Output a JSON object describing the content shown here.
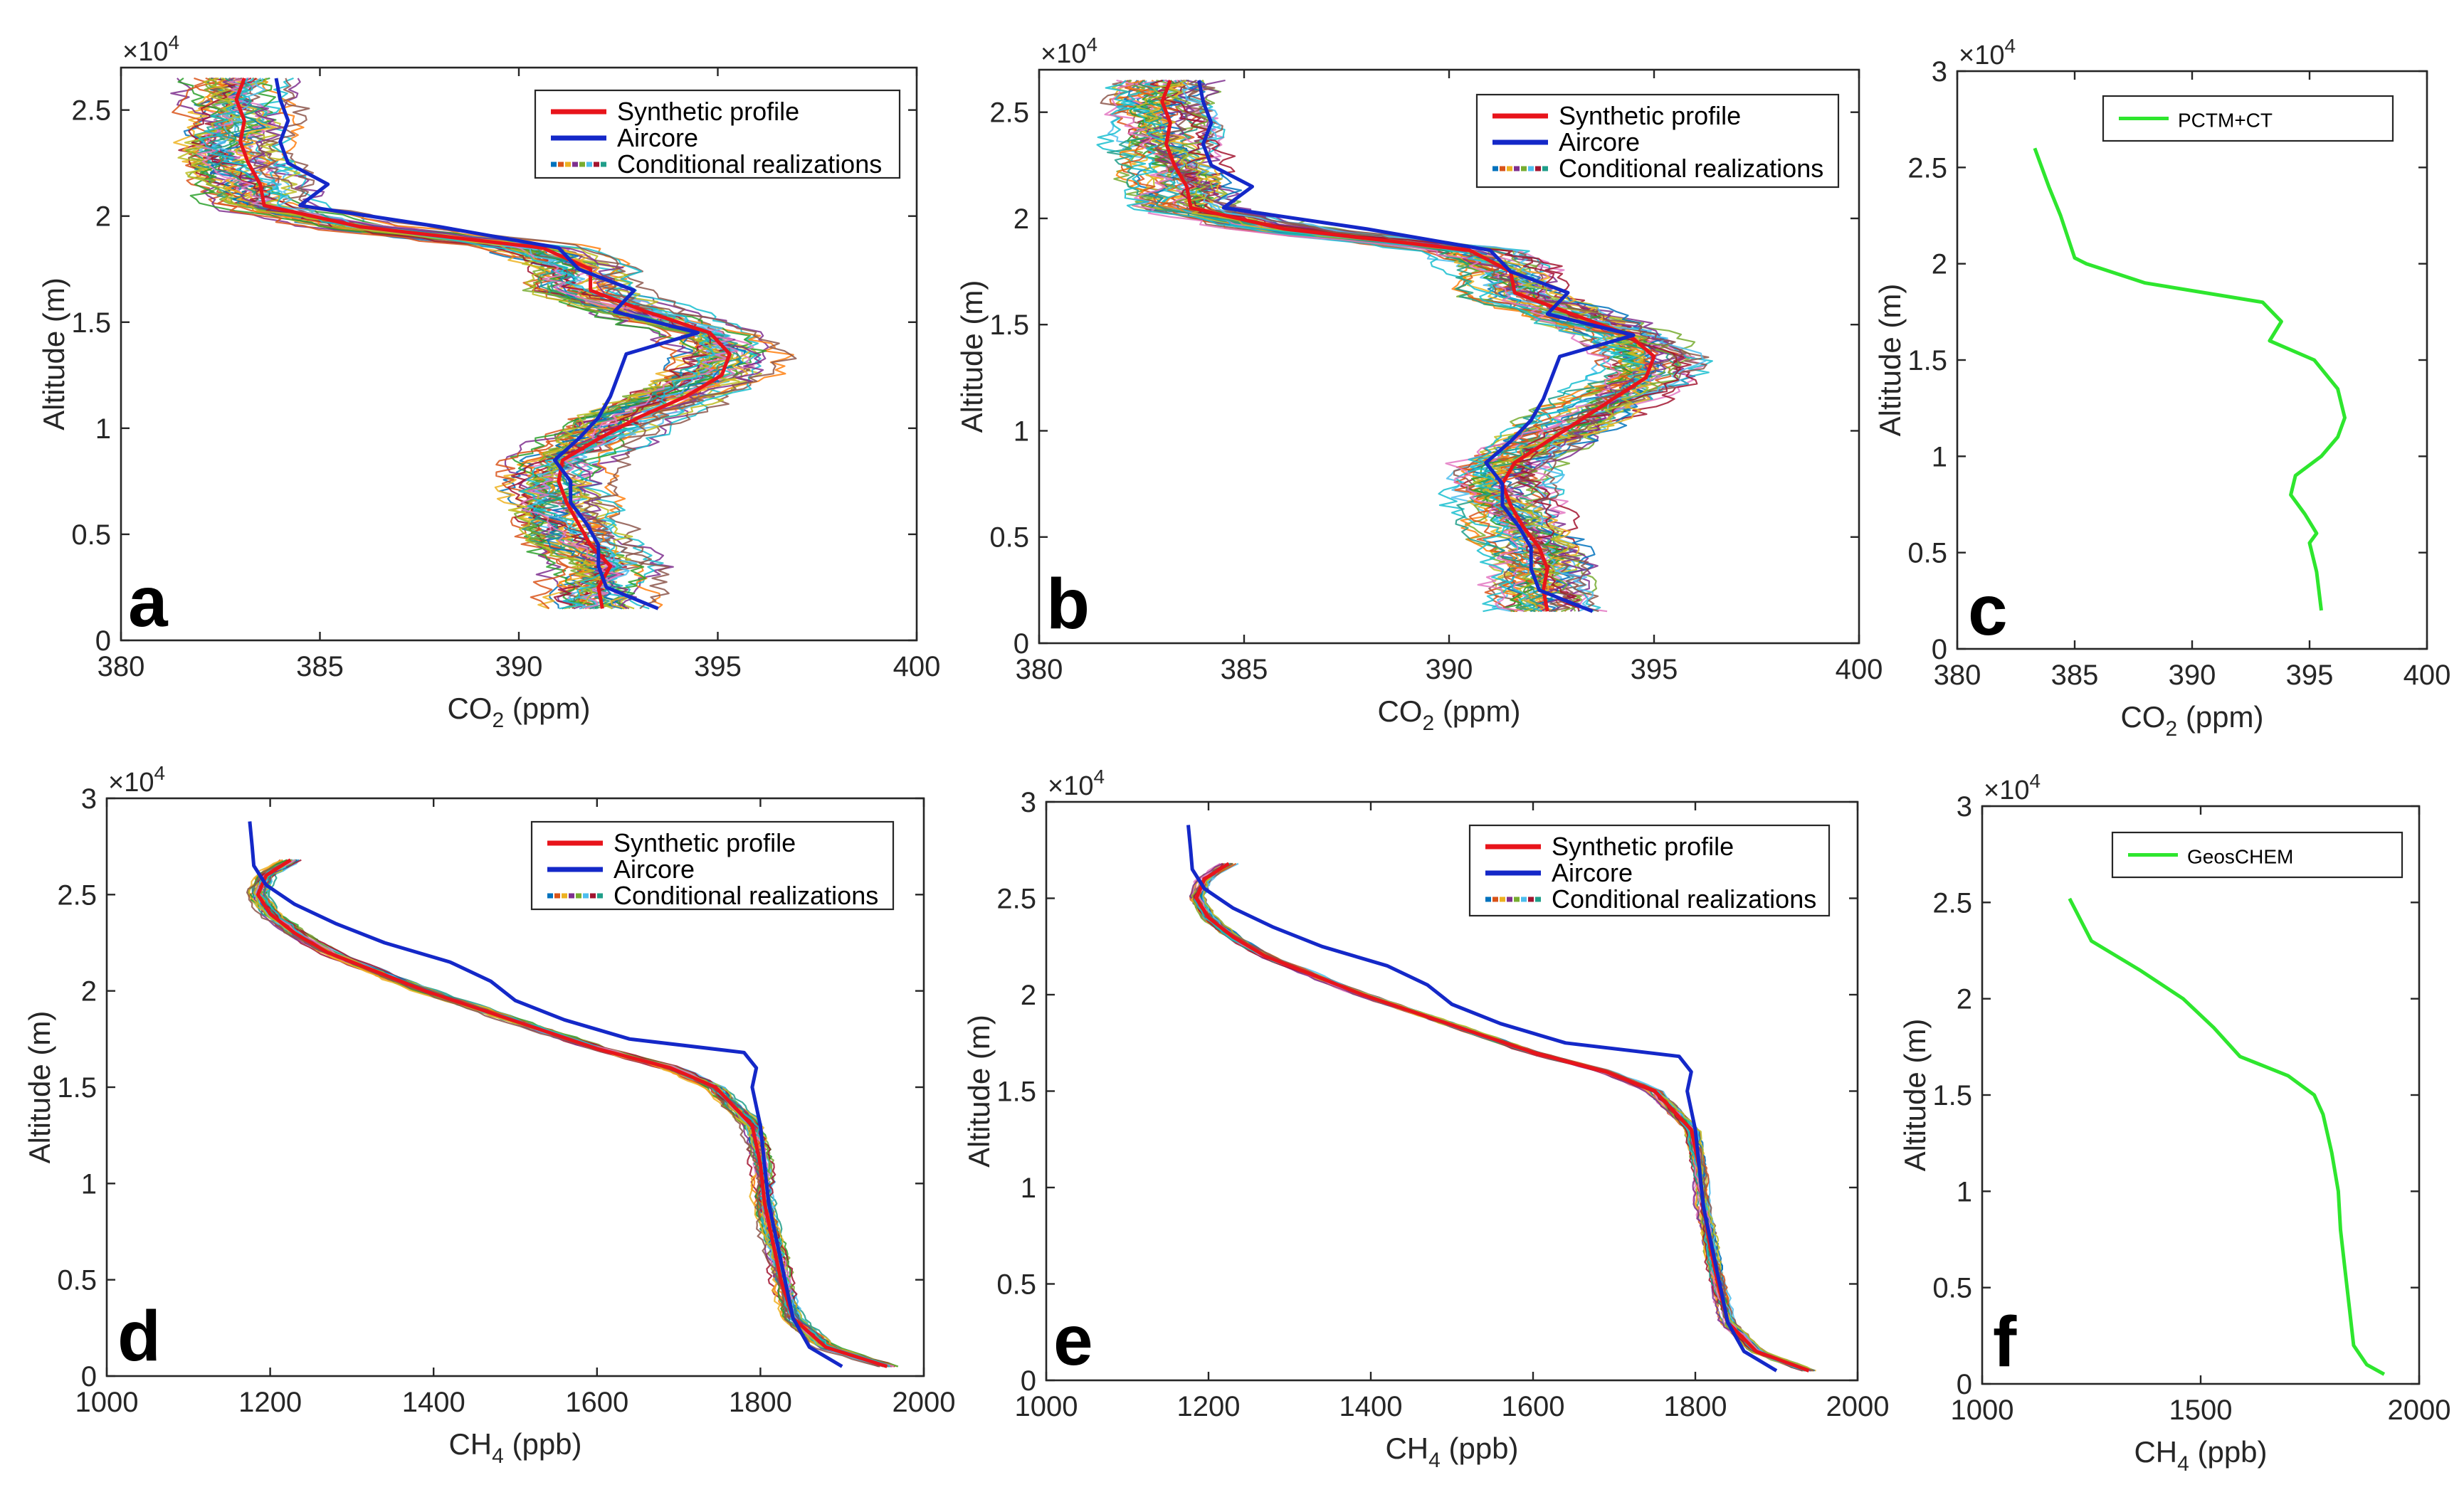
{
  "figure": {
    "colors": {
      "synthetic": "#e8141b",
      "aircore": "#1428c8",
      "model": "#2ee62e"
    }
  },
  "chart_data": [
    {
      "panel": "a",
      "type": "line",
      "xlabel": "CO2 (ppm)",
      "ylabel": "Altitude (m)",
      "xlim": [
        380,
        400
      ],
      "ylim": [
        0,
        27000
      ],
      "xticks": [
        380,
        385,
        390,
        395,
        400
      ],
      "yticks": [
        0,
        5000,
        10000,
        15000,
        20000,
        25000
      ],
      "ytick_labels": [
        "0",
        "0.5",
        "1",
        "1.5",
        "2",
        "2.5"
      ],
      "y_multiplier": "×10^4",
      "legend": [
        "Synthetic profile",
        "Aircore",
        "Conditional realizations"
      ],
      "legend_position": "top-right",
      "ensemble_spread": 1.2,
      "series": [
        {
          "name": "Synthetic profile",
          "color": "#e8141b",
          "y": [
            1500,
            2500,
            3500,
            4500,
            5500,
            6500,
            7500,
            8500,
            9500,
            10500,
            11500,
            12500,
            13500,
            14500,
            15500,
            16500,
            17500,
            18500,
            19500,
            20500,
            21500,
            22500,
            23500,
            24500,
            25500,
            26500
          ],
          "x": [
            392.1,
            392.0,
            392.3,
            391.8,
            391.5,
            391.2,
            391.0,
            391.1,
            392.0,
            393.0,
            394.2,
            395.1,
            395.3,
            394.8,
            393.2,
            391.8,
            391.8,
            390.6,
            386.0,
            383.6,
            383.5,
            383.2,
            383.0,
            383.1,
            382.9,
            383.1
          ]
        },
        {
          "name": "Aircore",
          "color": "#1428c8",
          "y": [
            1500,
            2500,
            3500,
            4500,
            5500,
            6500,
            7500,
            8500,
            9500,
            10500,
            11500,
            12500,
            13500,
            14500,
            15500,
            16500,
            17500,
            18500,
            19500,
            20500,
            21500,
            22500,
            23500,
            24500,
            25500,
            26500
          ],
          "x": [
            393.5,
            392.2,
            392.0,
            392.0,
            391.7,
            391.3,
            391.3,
            390.9,
            391.5,
            392.0,
            392.3,
            392.5,
            392.7,
            394.5,
            392.4,
            392.9,
            391.5,
            391.0,
            388.0,
            384.5,
            385.2,
            384.2,
            384.0,
            384.2,
            384.0,
            383.9
          ]
        }
      ]
    },
    {
      "panel": "b",
      "type": "line",
      "xlabel": "CO2 (ppm)",
      "ylabel": "Altitude (m)",
      "xlim": [
        380,
        400
      ],
      "ylim": [
        0,
        27000
      ],
      "xticks": [
        380,
        385,
        390,
        395,
        400
      ],
      "yticks": [
        0,
        5000,
        10000,
        15000,
        20000,
        25000
      ],
      "ytick_labels": [
        "0",
        "0.5",
        "1",
        "1.5",
        "2",
        "2.5"
      ],
      "y_multiplier": "×10^4",
      "legend": [
        "Synthetic profile",
        "Aircore",
        "Conditional realizations"
      ],
      "legend_position": "top-right",
      "ensemble_spread": 1.2,
      "series": [
        {
          "name": "Synthetic profile",
          "color": "#e8141b",
          "y": [
            1500,
            2500,
            3500,
            4500,
            5500,
            6500,
            7500,
            8500,
            9500,
            10500,
            11500,
            12500,
            13500,
            14500,
            15500,
            16500,
            17500,
            18500,
            19500,
            20500,
            21500,
            22500,
            23500,
            24500,
            25500,
            26500
          ],
          "x": [
            392.4,
            392.3,
            392.4,
            392.2,
            391.8,
            391.5,
            391.3,
            391.6,
            392.4,
            393.2,
            394.0,
            394.8,
            395.0,
            394.4,
            393.0,
            391.6,
            391.5,
            390.5,
            386.0,
            383.7,
            383.6,
            383.3,
            383.1,
            383.2,
            383.0,
            383.2
          ]
        },
        {
          "name": "Aircore",
          "color": "#1428c8",
          "y": [
            1500,
            2500,
            3500,
            4500,
            5500,
            6500,
            7500,
            8500,
            9500,
            10500,
            11500,
            12500,
            13500,
            14500,
            15500,
            16500,
            17500,
            18500,
            19500,
            20500,
            21500,
            22500,
            23500,
            24500,
            25500,
            26500
          ],
          "x": [
            393.5,
            392.2,
            392.0,
            392.0,
            391.7,
            391.3,
            391.3,
            390.9,
            391.5,
            392.0,
            392.3,
            392.5,
            392.7,
            394.5,
            392.4,
            392.9,
            391.5,
            391.0,
            388.0,
            384.5,
            385.2,
            384.2,
            384.0,
            384.2,
            384.0,
            383.9
          ]
        }
      ]
    },
    {
      "panel": "c",
      "type": "line",
      "xlabel": "CO2 (ppm)",
      "ylabel": "Altitude (m)",
      "xlim": [
        380,
        400
      ],
      "ylim": [
        0,
        30000
      ],
      "xticks": [
        380,
        385,
        390,
        395,
        400
      ],
      "yticks": [
        0,
        5000,
        10000,
        15000,
        20000,
        25000,
        30000
      ],
      "ytick_labels": [
        "0",
        "0.5",
        "1",
        "1.5",
        "2",
        "2.5",
        "3"
      ],
      "y_multiplier": "×10^4",
      "legend": [
        "PCTM+CT"
      ],
      "legend_position": "top-right",
      "series": [
        {
          "name": "PCTM+CT",
          "color": "#2ee62e",
          "y": [
            2000,
            4000,
            5500,
            6000,
            7000,
            8000,
            9000,
            10000,
            11000,
            12000,
            13500,
            15000,
            16000,
            17000,
            18000,
            19000,
            20000,
            20300,
            22500,
            24000,
            26000
          ],
          "x": [
            395.5,
            395.3,
            395.0,
            395.3,
            394.8,
            394.2,
            394.4,
            395.5,
            396.2,
            396.5,
            396.2,
            395.2,
            393.3,
            393.8,
            393.0,
            388.0,
            385.5,
            385.0,
            384.4,
            383.9,
            383.3
          ]
        }
      ]
    },
    {
      "panel": "d",
      "type": "line",
      "xlabel": "CH4 (ppb)",
      "ylabel": "Altitude (m)",
      "xlim": [
        1000,
        2000
      ],
      "ylim": [
        0,
        30000
      ],
      "xticks": [
        1000,
        1200,
        1400,
        1600,
        1800,
        2000
      ],
      "yticks": [
        0,
        5000,
        10000,
        15000,
        20000,
        25000,
        30000
      ],
      "ytick_labels": [
        "0",
        "0.5",
        "1",
        "1.5",
        "2",
        "2.5",
        "3"
      ],
      "y_multiplier": "×10^4",
      "legend": [
        "Synthetic profile",
        "Aircore",
        "Conditional realizations"
      ],
      "legend_position": "top-right",
      "ensemble_spread": 12,
      "series": [
        {
          "name": "Synthetic profile",
          "color": "#e8141b",
          "y": [
            500,
            1500,
            3000,
            5000,
            7000,
            9000,
            11000,
            13000,
            15000,
            16000,
            17000,
            18000,
            19000,
            20000,
            21000,
            22000,
            23000,
            24000,
            25000,
            26000,
            26800
          ],
          "x": [
            1955,
            1880,
            1840,
            1825,
            1815,
            1805,
            1800,
            1790,
            1745,
            1690,
            1600,
            1530,
            1460,
            1390,
            1330,
            1270,
            1230,
            1200,
            1185,
            1195,
            1225
          ]
        },
        {
          "name": "Aircore",
          "color": "#1428c8",
          "y": [
            500,
            1500,
            3000,
            5000,
            7000,
            9000,
            11000,
            13000,
            15000,
            16000,
            16800,
            17500,
            18500,
            19500,
            20500,
            21500,
            22500,
            23500,
            24500,
            25500,
            26500,
            27500,
            28800
          ],
          "x": [
            1900,
            1860,
            1840,
            1830,
            1820,
            1810,
            1805,
            1800,
            1790,
            1795,
            1780,
            1640,
            1560,
            1500,
            1470,
            1420,
            1340,
            1280,
            1230,
            1195,
            1180,
            1178,
            1175
          ]
        }
      ]
    },
    {
      "panel": "e",
      "type": "line",
      "xlabel": "CH4 (ppb)",
      "ylabel": "Altitude (m)",
      "xlim": [
        1000,
        2000
      ],
      "ylim": [
        0,
        30000
      ],
      "xticks": [
        1000,
        1200,
        1400,
        1600,
        1800,
        2000
      ],
      "yticks": [
        0,
        5000,
        10000,
        15000,
        20000,
        25000,
        30000
      ],
      "ytick_labels": [
        "0",
        "0.5",
        "1",
        "1.5",
        "2",
        "2.5",
        "3"
      ],
      "y_multiplier": "×10^4",
      "legend": [
        "Synthetic profile",
        "Aircore",
        "Conditional realizations"
      ],
      "legend_position": "top-right",
      "ensemble_spread": 8,
      "series": [
        {
          "name": "Synthetic profile",
          "color": "#e8141b",
          "y": [
            500,
            1500,
            3000,
            5000,
            7000,
            9000,
            11000,
            13000,
            15000,
            16000,
            17000,
            18000,
            19000,
            20000,
            21000,
            22000,
            23000,
            24000,
            25000,
            26000,
            26800
          ],
          "x": [
            1940,
            1875,
            1840,
            1828,
            1818,
            1810,
            1805,
            1795,
            1750,
            1690,
            1600,
            1530,
            1460,
            1390,
            1330,
            1270,
            1230,
            1200,
            1185,
            1195,
            1225
          ]
        },
        {
          "name": "Aircore",
          "color": "#1428c8",
          "y": [
            500,
            1500,
            3000,
            5000,
            7000,
            9000,
            11000,
            13000,
            15000,
            16000,
            16800,
            17500,
            18500,
            19500,
            20500,
            21500,
            22500,
            23500,
            24500,
            25500,
            26500,
            27500,
            28800
          ],
          "x": [
            1900,
            1860,
            1840,
            1830,
            1820,
            1810,
            1805,
            1800,
            1790,
            1795,
            1780,
            1640,
            1560,
            1500,
            1470,
            1420,
            1340,
            1280,
            1230,
            1195,
            1180,
            1178,
            1175
          ]
        }
      ]
    },
    {
      "panel": "f",
      "type": "line",
      "xlabel": "CH4 (ppb)",
      "ylabel": "Altitude (m)",
      "xlim": [
        1000,
        2000
      ],
      "ylim": [
        0,
        30000
      ],
      "xticks": [
        1000,
        1500,
        2000
      ],
      "yticks": [
        0,
        5000,
        10000,
        15000,
        20000,
        25000,
        30000
      ],
      "ytick_labels": [
        "0",
        "0.5",
        "1",
        "1.5",
        "2",
        "2.5",
        "3"
      ],
      "y_multiplier": "×10^4",
      "legend": [
        "GeosCHEM"
      ],
      "legend_position": "top-right",
      "series": [
        {
          "name": "GeosCHEM",
          "color": "#2ee62e",
          "y": [
            500,
            1000,
            2000,
            4000,
            6000,
            8000,
            10000,
            12000,
            14000,
            15000,
            16000,
            17000,
            18500,
            20000,
            21500,
            23000,
            25200
          ],
          "x": [
            1920,
            1880,
            1850,
            1840,
            1830,
            1820,
            1815,
            1800,
            1780,
            1760,
            1700,
            1590,
            1530,
            1460,
            1360,
            1250,
            1200
          ]
        }
      ]
    }
  ]
}
